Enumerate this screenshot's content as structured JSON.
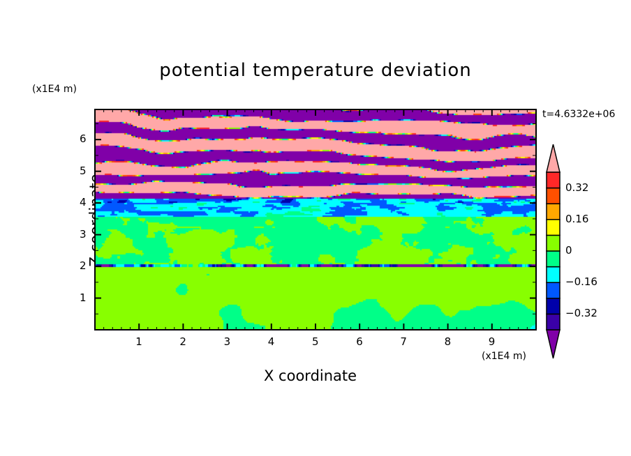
{
  "chart_data": {
    "type": "heatmap",
    "subtype": "filled-contour",
    "title": "potential temperature deviation",
    "xlabel": "X coordinate",
    "ylabel": "Z coordinate",
    "x_unit": "(x1E4 m)",
    "y_unit": "(x1E4 m)",
    "annotation": "t=4.6332e+06",
    "xlim": [
      0,
      10
    ],
    "ylim": [
      0,
      6.95
    ],
    "x_ticks": [
      "1",
      "2",
      "3",
      "4",
      "5",
      "6",
      "7",
      "8",
      "9"
    ],
    "y_ticks": [
      "1",
      "2",
      "3",
      "4",
      "5",
      "6"
    ],
    "colorbar": {
      "levels": [
        -0.4,
        -0.32,
        -0.24,
        -0.16,
        -0.08,
        0,
        0.08,
        0.16,
        0.24,
        0.32,
        0.4
      ],
      "tick_labels": [
        "0.32",
        "0.16",
        "0",
        "−0.16",
        "−0.32"
      ],
      "tick_values": [
        0.32,
        0.16,
        0,
        -0.16,
        -0.32
      ],
      "colors": [
        "#3a00a8",
        "#0000aa",
        "#0058ff",
        "#00ffff",
        "#00ff88",
        "#88ff00",
        "#ffff00",
        "#ffa800",
        "#ff5000",
        "#ff2828"
      ],
      "under_color": "#8000a8",
      "over_color": "#ffa8a8",
      "extend": "both"
    },
    "field_description_regions": [
      {
        "z_range": [
          4.1,
          6.95
        ],
        "pattern": "alternating bands above 0.4 and below -0.4"
      },
      {
        "z_range": [
          3.5,
          4.1
        ],
        "pattern": "-0.24 to -0.08"
      },
      {
        "z_range": [
          0,
          3.5
        ],
        "pattern": "-0.08 to 0.08, thin negative line near z=2"
      }
    ]
  }
}
